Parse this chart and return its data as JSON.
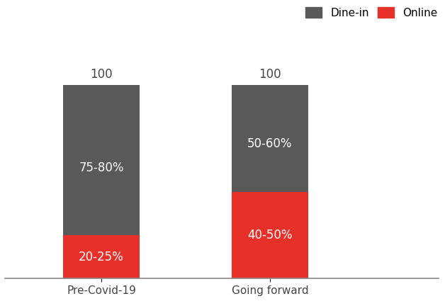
{
  "categories": [
    "Pre-Covid-19",
    "Going forward"
  ],
  "online_values": [
    22.5,
    45.0
  ],
  "dinein_values": [
    77.5,
    55.0
  ],
  "total_labels": [
    "100",
    "100"
  ],
  "online_labels": [
    "20-25%",
    "40-50%"
  ],
  "dinein_labels": [
    "75-80%",
    "50-60%"
  ],
  "online_color": "#E8302A",
  "dinein_color": "#595959",
  "text_color_white": "#FFFFFF",
  "text_color_dark": "#444444",
  "bar_width": 0.32,
  "ylim": [
    0,
    130
  ],
  "legend_dinein": "Dine-in",
  "legend_online": "Online",
  "background_color": "#FFFFFF",
  "label_fontsize": 12,
  "total_fontsize": 12,
  "legend_fontsize": 11,
  "tick_fontsize": 11
}
